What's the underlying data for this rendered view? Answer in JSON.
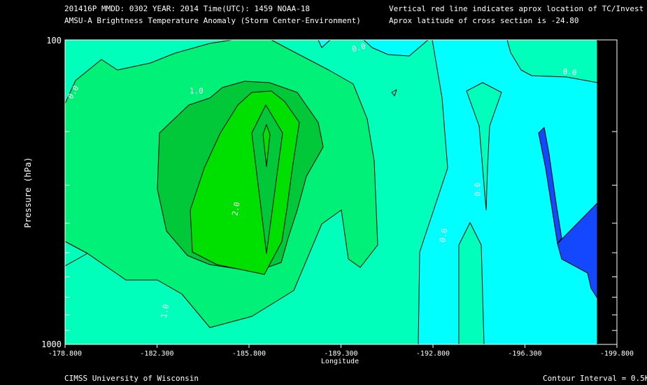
{
  "header": {
    "line1_left": "201416P  MMDD: 0302 YEAR: 2014 Time(UTC): 1459 NOAA-18",
    "line2_left": "AMSU-A Brightness Temperature Anomaly (Storm Center-Environment)",
    "line1_right": "Vertical red line indicates aprox location of TC/Invest",
    "line2_right": "Aprox latitude of cross section is -24.80"
  },
  "footer": {
    "left": "CIMSS University of Wisconsin",
    "right": "Contour Interval = 0.5K"
  },
  "colors": {
    "background": "#000000",
    "level_0_0": "#00ffff",
    "level_0_5": "#00ffbb",
    "level_1_0": "#00f078",
    "level_1_5": "#00c838",
    "level_2_0": "#00e000",
    "negative": "#1448ff",
    "contour": "#000000",
    "text": "#ffffff"
  },
  "chart_data": {
    "type": "heatmap",
    "title": "AMSU-A Brightness Temperature Anomaly (Storm Center-Environment)",
    "xlabel": "Longitude",
    "ylabel": "Pressure (hPa)",
    "xlim": [
      -178.8,
      -199.8
    ],
    "ylim": [
      1000,
      100
    ],
    "y_scale": "log",
    "x_ticks": [
      "-178.800",
      "-182.300",
      "-185.800",
      "-189.300",
      "-192.800",
      "-196.300",
      "-199.800"
    ],
    "y_ticks": [
      "100",
      "1000"
    ],
    "contour_interval": 0.5,
    "contour_labels": [
      {
        "text": "0.0",
        "x": -179.2,
        "y": 150
      },
      {
        "text": "1.0",
        "x": -183.8,
        "y": 150
      },
      {
        "text": "2.0",
        "x": -185.4,
        "y": 360
      },
      {
        "text": "1.0",
        "x": -182.7,
        "y": 780
      },
      {
        "text": "0.0",
        "x": -190.0,
        "y": 108
      },
      {
        "text": "0.0",
        "x": -193.3,
        "y": 440
      },
      {
        "text": "0.0",
        "x": -194.6,
        "y": 310
      },
      {
        "text": "0.0",
        "x": -198.0,
        "y": 130
      }
    ]
  }
}
